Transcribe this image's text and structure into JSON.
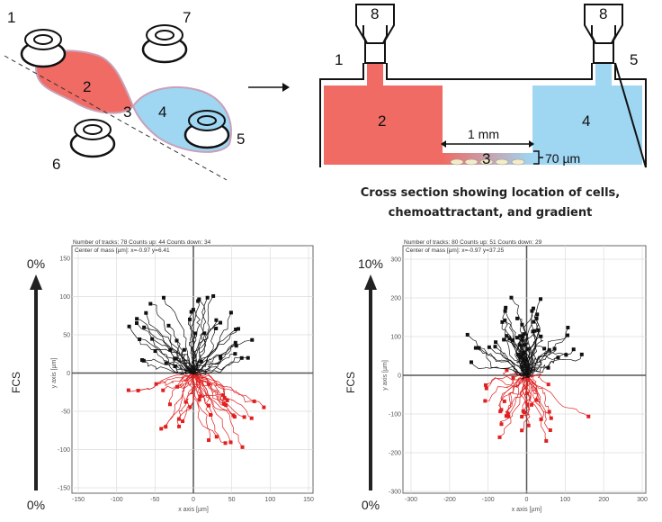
{
  "diagram": {
    "chip_labels": [
      "1",
      "2",
      "3",
      "4",
      "5",
      "6",
      "7"
    ],
    "cross_section_labels": {
      "well_left": "8",
      "well_right": "8",
      "inlet_left": "1",
      "inlet_right": "5",
      "chamber_left": "2",
      "chamber_right": "4",
      "channel": "3",
      "length": "1 mm",
      "height": "70 µm"
    },
    "caption_line1": "Cross section showing location of cells,",
    "caption_line2": "chemoattractant, and gradient",
    "colors": {
      "attractant": "#ef6b64",
      "buffer": "#9fd6f2",
      "cells": "#f3ecc9"
    }
  },
  "chart_data": [
    {
      "type": "scatter",
      "subtype": "trajectory-plot",
      "gradient_label": "FCS",
      "gradient_top": "0%",
      "gradient_bottom": "0%",
      "stats_line1": "Number of tracks: 78  Counts up: 44  Counts down: 34",
      "stats_line2": "Center of mass [µm]: x=-0.97 y=6.41",
      "xlabel": "x axis [µm]",
      "ylabel": "y axis [µm]",
      "xlim": [
        -150,
        150
      ],
      "ylim": [
        -150,
        150
      ],
      "xticks": [
        "-150",
        "-100",
        "-50",
        "0",
        "50",
        "100",
        "150"
      ],
      "yticks": [
        "150",
        "100",
        "50",
        "0",
        "-50",
        "-100",
        "-150"
      ],
      "tracks_up": 44,
      "tracks_down": 34,
      "colors": {
        "up": "#111111",
        "down": "#e02020"
      },
      "grid": true
    },
    {
      "type": "scatter",
      "subtype": "trajectory-plot",
      "gradient_label": "FCS",
      "gradient_top": "10%",
      "gradient_bottom": "0%",
      "stats_line1": "Number of tracks: 80  Counts up: 51  Counts down: 29",
      "stats_line2": "Center of mass [µm]: x=-0.97 y=37.25",
      "xlabel": "x axis [µm]",
      "ylabel": "y axis [µm]",
      "xlim": [
        -300,
        300
      ],
      "ylim": [
        -300,
        300
      ],
      "xticks": [
        "-300",
        "-200",
        "-100",
        "0",
        "100",
        "200",
        "300"
      ],
      "yticks": [
        "300",
        "200",
        "100",
        "0",
        "-100",
        "-200",
        "-300"
      ],
      "tracks_up": 51,
      "tracks_down": 29,
      "colors": {
        "up": "#111111",
        "down": "#e02020"
      },
      "grid": true
    }
  ]
}
